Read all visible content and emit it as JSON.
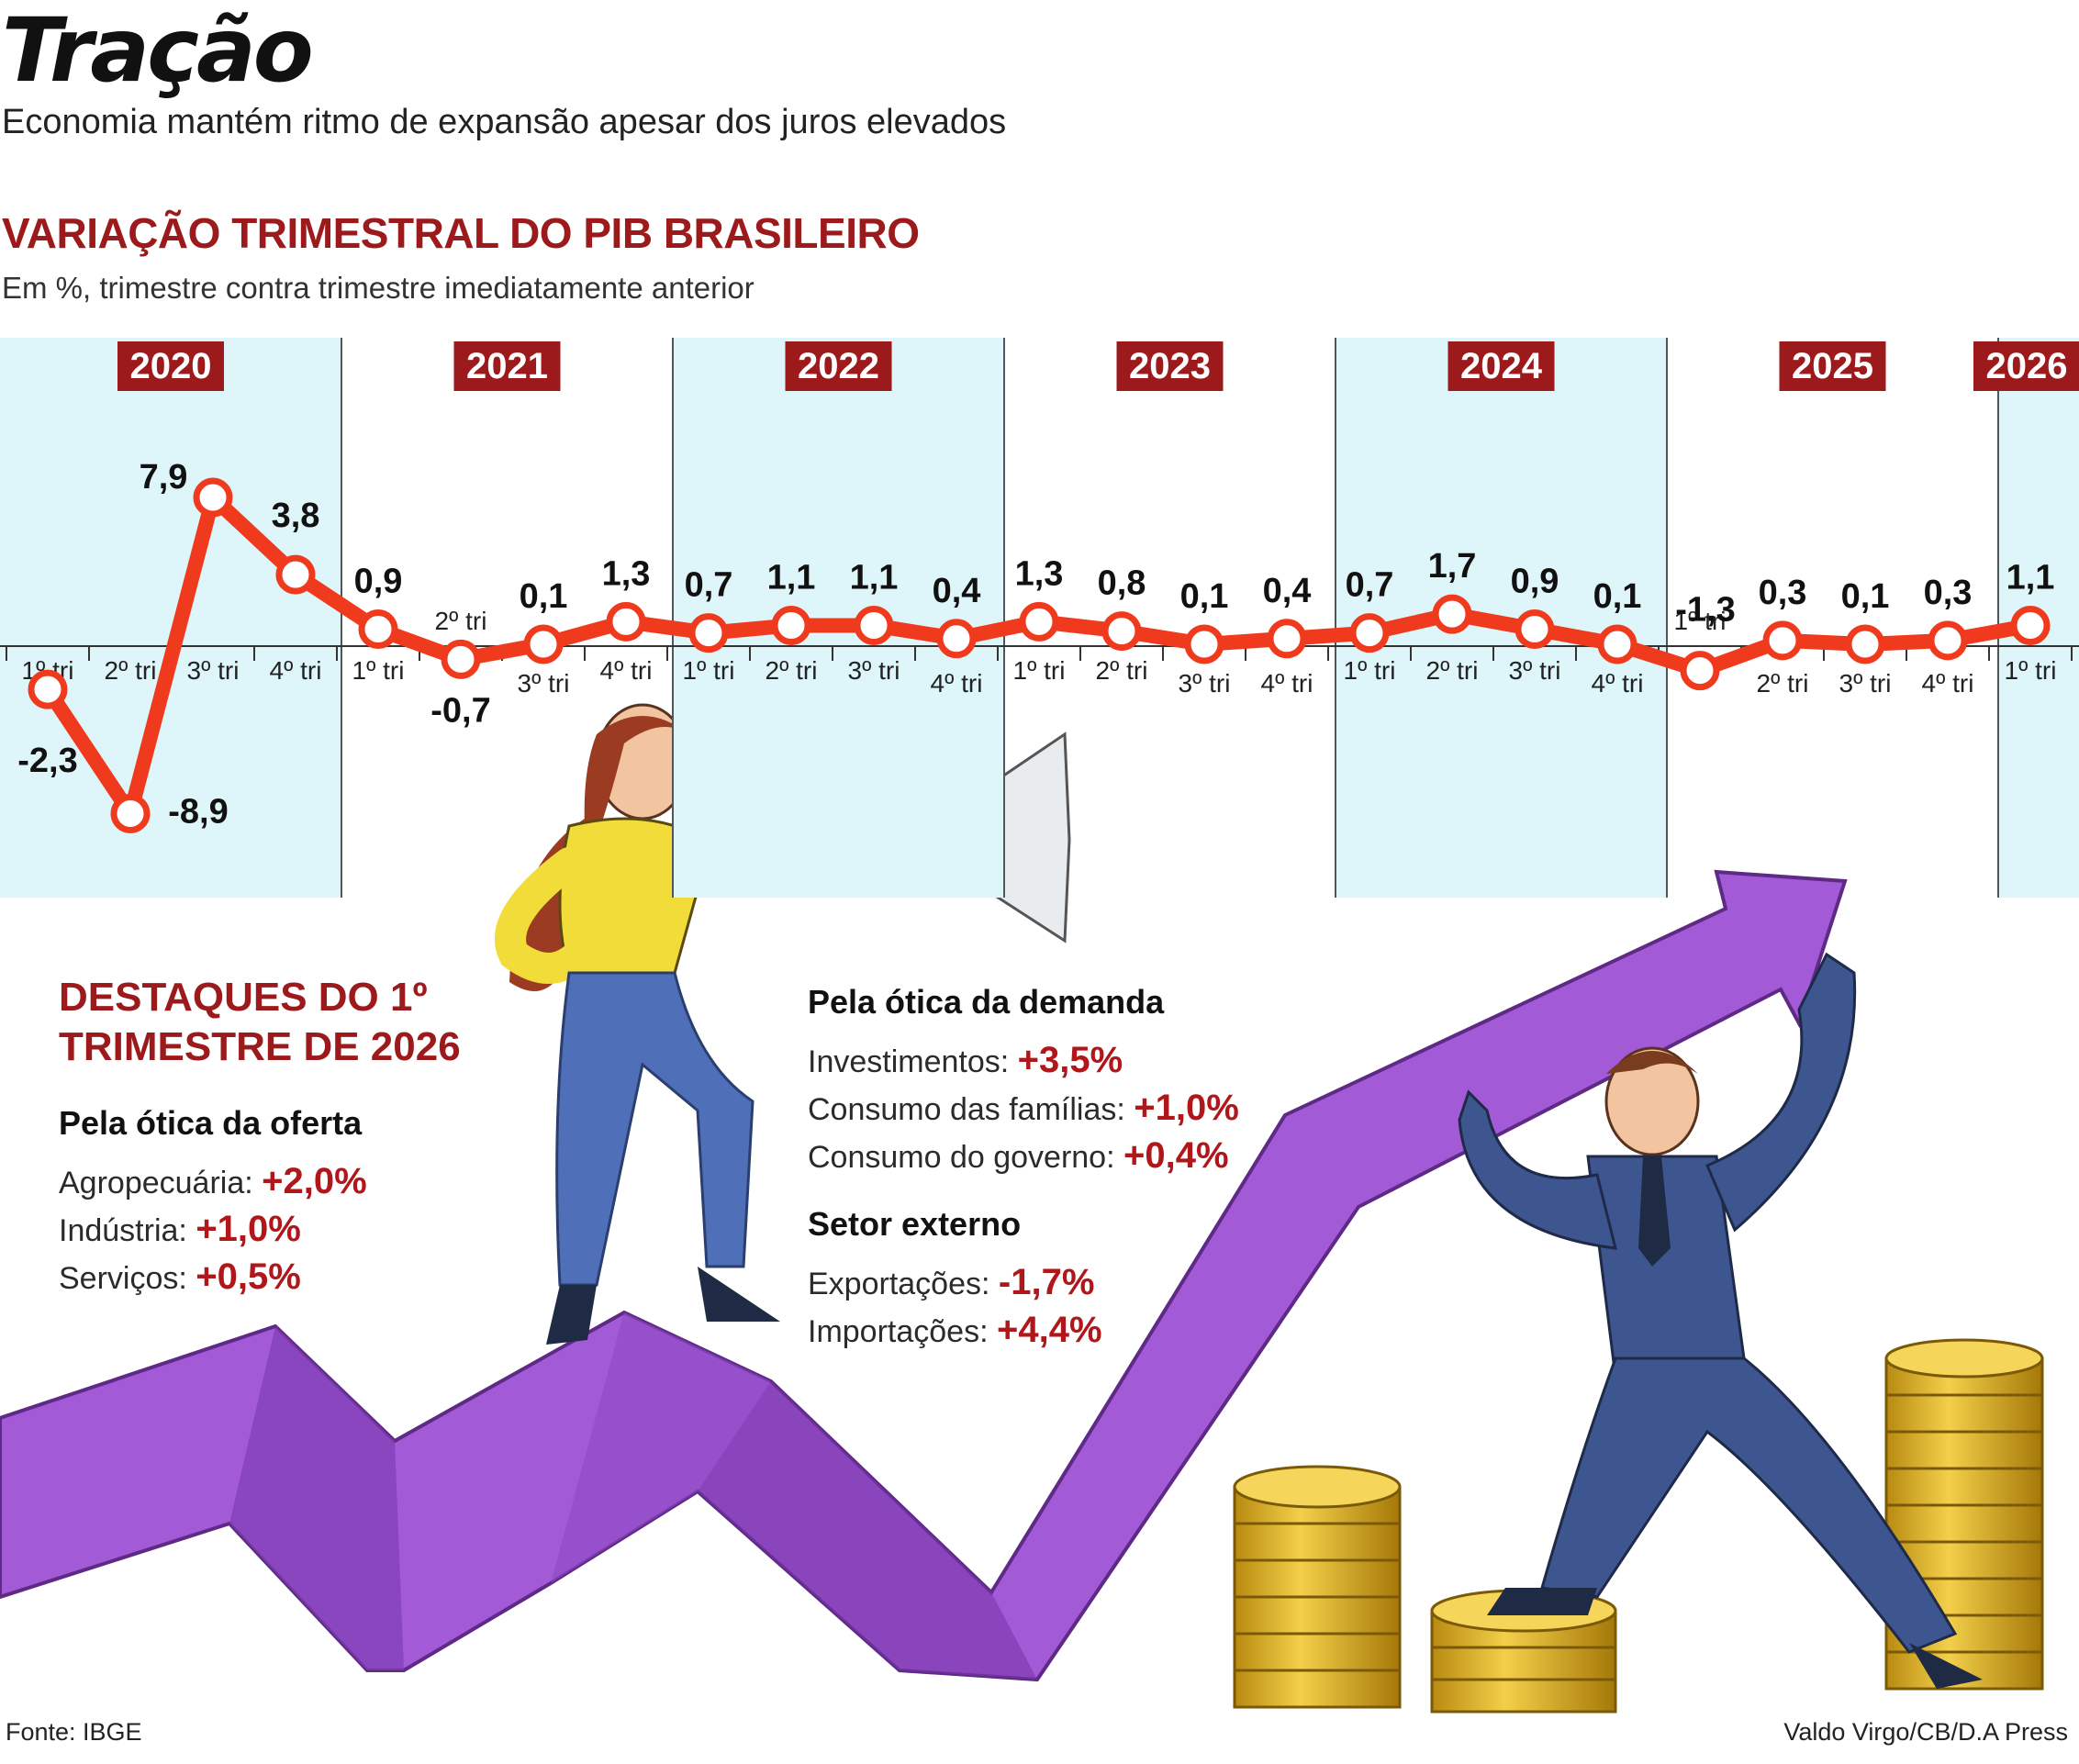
{
  "header": {
    "title": "Tração",
    "subtitle": "Economia mantém ritmo de expansão apesar dos juros elevados"
  },
  "chart_data": {
    "type": "line",
    "title": "VARIAÇÃO TRIMESTRAL DO PIB BRASILEIRO",
    "subtitle": "Em %, trimestre contra trimestre imediatamente anterior",
    "years": [
      "2020",
      "2021",
      "2022",
      "2023",
      "2024",
      "2025",
      "2026"
    ],
    "quarter_labels": [
      "1º tri",
      "2º tri",
      "3º tri",
      "4º tri",
      "1º tri",
      "2º tri",
      "3º tri",
      "4º tri",
      "1º tri",
      "2º tri",
      "3º tri",
      "4º tri",
      "1º tri",
      "2º tri",
      "3º tri",
      "4º tri",
      "1º tri",
      "2º tri",
      "3º tri",
      "4º tri",
      "1º tri",
      "2º tri",
      "3º tri",
      "4º tri",
      "1º tri"
    ],
    "values": [
      -2.3,
      -8.9,
      7.9,
      3.8,
      0.9,
      -0.7,
      0.1,
      1.3,
      0.7,
      1.1,
      1.1,
      0.4,
      1.3,
      0.8,
      0.1,
      0.4,
      0.7,
      1.7,
      0.9,
      0.1,
      -1.3,
      0.3,
      0.1,
      0.3,
      1.1
    ],
    "value_labels": [
      "-2,3",
      "-8,9",
      "7,9",
      "3,8",
      "0,9",
      "-0,7",
      "0,1",
      "1,3",
      "0,7",
      "1,1",
      "1,1",
      "0,4",
      "1,3",
      "0,8",
      "0,1",
      "0,4",
      "0,7",
      "1,7",
      "0,9",
      "0,1",
      "-1,3",
      "0,3",
      "0,1",
      "0,3",
      "1,1"
    ],
    "series_color": "#f03a1e",
    "shade_color": "#def6f9",
    "year_badge_color": "#9c1a1c"
  },
  "highlights": {
    "title_line1": "DESTAQUES DO 1º",
    "title_line2": "TRIMESTRE DE 2026",
    "supply": {
      "heading": "Pela ótica da oferta",
      "items": [
        {
          "label": "Agropecuária:",
          "value": "+2,0%"
        },
        {
          "label": "Indústria:",
          "value": "+1,0%"
        },
        {
          "label": "Serviços:",
          "value": "+0,5%"
        }
      ]
    },
    "demand": {
      "heading": "Pela ótica da demanda",
      "items": [
        {
          "label": "Investimentos:",
          "value": "+3,5%"
        },
        {
          "label": "Consumo das famílias:",
          "value": "+1,0%"
        },
        {
          "label": "Consumo do governo:",
          "value": "+0,4%"
        }
      ]
    },
    "external": {
      "heading": "Setor externo",
      "items": [
        {
          "label": "Exportações:",
          "value": "-1,7%"
        },
        {
          "label": "Importações:",
          "value": "+4,4%"
        }
      ]
    }
  },
  "footer": {
    "source": "Fonte: IBGE",
    "credit": "Valdo Virgo/CB/D.A Press"
  }
}
